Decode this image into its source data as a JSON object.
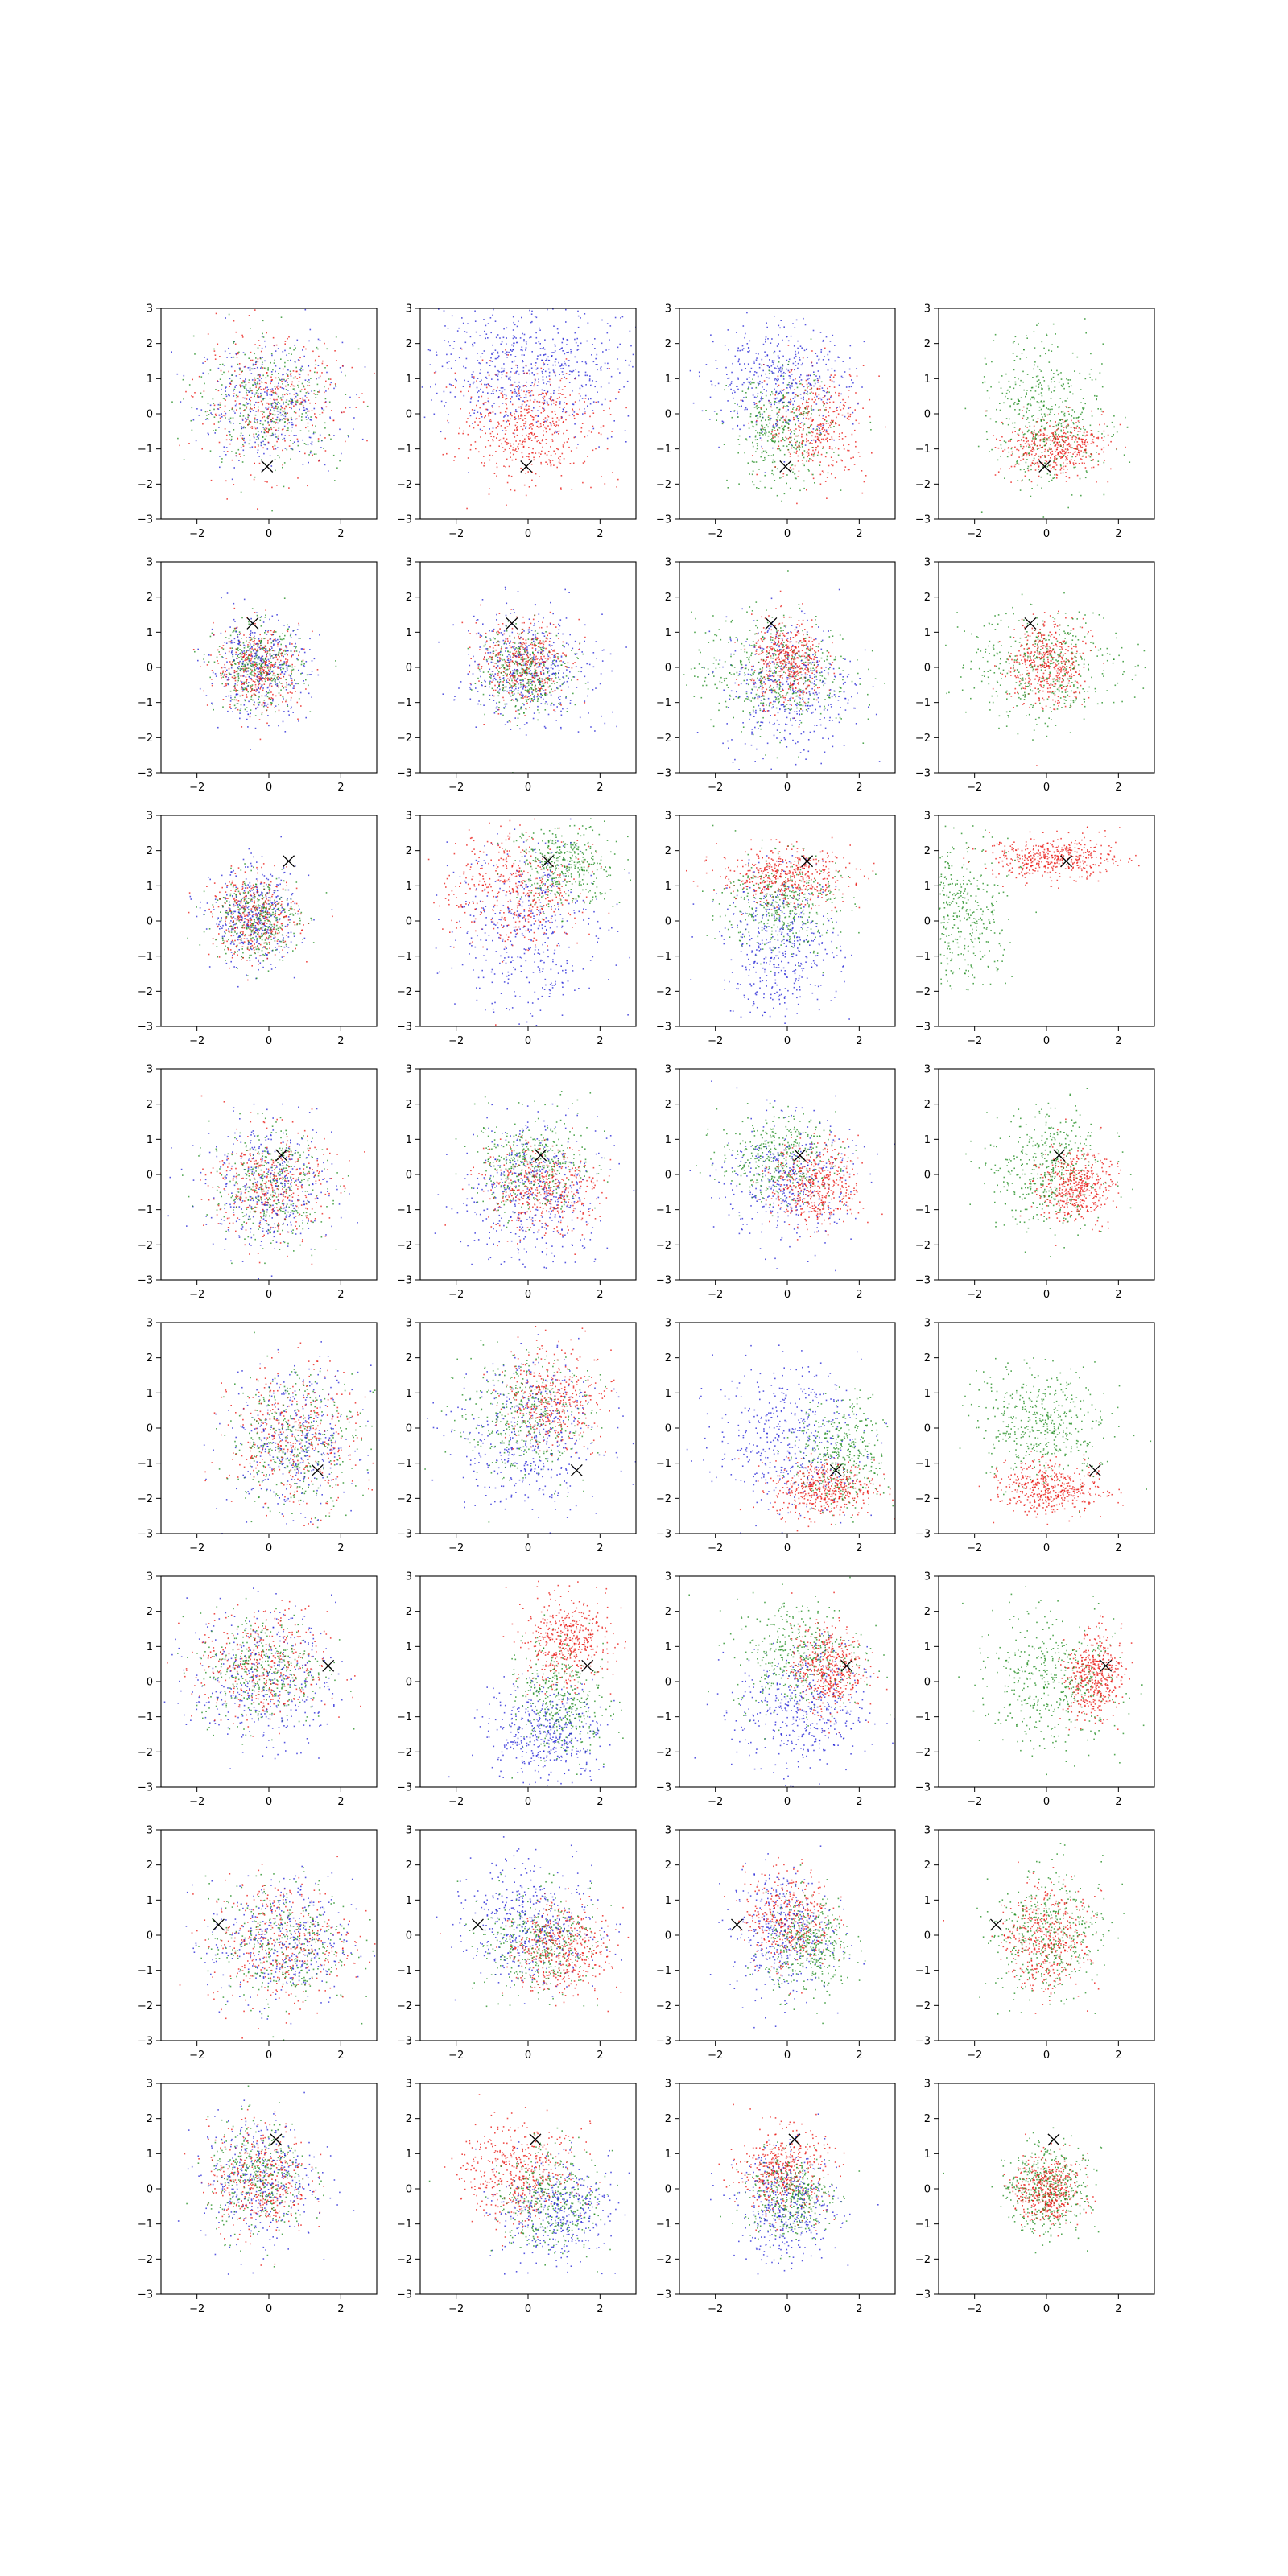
{
  "figure": {
    "rows": 8,
    "cols": 4,
    "colors": {
      "red": "#e8120c",
      "green": "#1a8a1a",
      "blue": "#1f1fd6",
      "marker": "#000000"
    }
  },
  "axes": {
    "xlim": [
      -3,
      3
    ],
    "ylim": [
      -3,
      3
    ],
    "xticks": [
      -2,
      0,
      2
    ],
    "yticks": [
      -3,
      -2,
      -1,
      0,
      1,
      2,
      3
    ],
    "xtick_labels": [
      "−2",
      "0",
      "2"
    ],
    "ytick_labels": [
      "−3",
      "−2",
      "−1",
      "0",
      "1",
      "2",
      "3"
    ]
  },
  "chart_data": {
    "type": "scatter",
    "description_of_panels": "8×4 grid of scatter panels; each row shares one × marker position; points drawn as Gaussian clouds per color",
    "markers": [
      {
        "row": 0,
        "x": -0.05,
        "y": -1.5
      },
      {
        "row": 1,
        "x": -0.45,
        "y": 1.25
      },
      {
        "row": 2,
        "x": 0.55,
        "y": 1.7
      },
      {
        "row": 3,
        "x": 0.35,
        "y": 0.55
      },
      {
        "row": 4,
        "x": 1.35,
        "y": -1.2
      },
      {
        "row": 5,
        "x": 1.65,
        "y": 0.45
      },
      {
        "row": 6,
        "x": -1.4,
        "y": 0.3
      },
      {
        "row": 7,
        "x": 0.2,
        "y": 1.4
      }
    ],
    "panels": [
      [
        {
          "clouds": [
            {
              "c": "blue",
              "mx": 0,
              "my": 0.3,
              "sx": 1.0,
              "sy": 0.9,
              "n": 380
            },
            {
              "c": "red",
              "mx": 0,
              "my": 0.3,
              "sx": 1.0,
              "sy": 0.9,
              "n": 380
            },
            {
              "c": "green",
              "mx": 0,
              "my": 0.3,
              "sx": 1.0,
              "sy": 0.9,
              "n": 380
            }
          ]
        },
        {
          "clouds": [
            {
              "c": "blue",
              "mx": 0,
              "my": 1.4,
              "sx": 1.5,
              "sy": 0.9,
              "n": 650
            },
            {
              "c": "red",
              "mx": 0,
              "my": -0.4,
              "sx": 0.9,
              "sy": 0.8,
              "n": 550
            }
          ]
        },
        {
          "clouds": [
            {
              "c": "blue",
              "mx": -0.3,
              "my": 1.0,
              "sx": 1.0,
              "sy": 0.8,
              "n": 450
            },
            {
              "c": "red",
              "mx": 0.8,
              "my": -0.3,
              "sx": 0.7,
              "sy": 0.8,
              "n": 400
            },
            {
              "c": "green",
              "mx": -0.2,
              "my": -0.5,
              "sx": 0.7,
              "sy": 0.8,
              "n": 380
            }
          ]
        },
        {
          "clouds": [
            {
              "c": "green",
              "mx": 0,
              "my": 0.0,
              "sx": 0.8,
              "sy": 1.0,
              "n": 500
            },
            {
              "c": "red",
              "mx": 0.2,
              "my": -0.9,
              "sx": 0.7,
              "sy": 0.4,
              "n": 450
            }
          ]
        }
      ],
      [
        {
          "clouds": [
            {
              "c": "blue",
              "mx": -0.3,
              "my": 0,
              "sx": 0.7,
              "sy": 0.7,
              "n": 380
            },
            {
              "c": "red",
              "mx": -0.3,
              "my": 0,
              "sx": 0.6,
              "sy": 0.6,
              "n": 380
            },
            {
              "c": "green",
              "mx": -0.3,
              "my": 0,
              "sx": 0.6,
              "sy": 0.6,
              "n": 380
            }
          ]
        },
        {
          "clouds": [
            {
              "c": "blue",
              "mx": 0,
              "my": 0,
              "sx": 0.9,
              "sy": 0.8,
              "n": 450
            },
            {
              "c": "red",
              "mx": -0.1,
              "my": 0.1,
              "sx": 0.6,
              "sy": 0.6,
              "n": 400
            },
            {
              "c": "green",
              "mx": -0.1,
              "my": -0.1,
              "sx": 0.6,
              "sy": 0.6,
              "n": 400
            }
          ]
        },
        {
          "clouds": [
            {
              "c": "blue",
              "mx": 0,
              "my": -0.5,
              "sx": 0.9,
              "sy": 1.0,
              "n": 450
            },
            {
              "c": "green",
              "mx": -0.4,
              "my": -0.1,
              "sx": 1.1,
              "sy": 0.8,
              "n": 450
            },
            {
              "c": "red",
              "mx": 0,
              "my": 0.2,
              "sx": 0.5,
              "sy": 0.6,
              "n": 450
            }
          ]
        },
        {
          "clouds": [
            {
              "c": "green",
              "mx": 0,
              "my": 0,
              "sx": 1.1,
              "sy": 0.8,
              "n": 450
            },
            {
              "c": "red",
              "mx": 0,
              "my": 0.1,
              "sx": 0.5,
              "sy": 0.6,
              "n": 450
            }
          ]
        }
      ],
      [
        {
          "clouds": [
            {
              "c": "blue",
              "mx": -0.4,
              "my": 0.1,
              "sx": 0.6,
              "sy": 0.7,
              "n": 380
            },
            {
              "c": "red",
              "mx": -0.4,
              "my": 0.1,
              "sx": 0.6,
              "sy": 0.6,
              "n": 380
            },
            {
              "c": "green",
              "mx": -0.4,
              "my": 0.1,
              "sx": 0.6,
              "sy": 0.6,
              "n": 380
            }
          ]
        },
        {
          "clouds": [
            {
              "c": "blue",
              "mx": 0,
              "my": -0.3,
              "sx": 1.0,
              "sy": 1.3,
              "n": 450
            },
            {
              "c": "red",
              "mx": -0.4,
              "my": 0.9,
              "sx": 0.9,
              "sy": 0.8,
              "n": 450
            },
            {
              "c": "green",
              "mx": 1.0,
              "my": 1.6,
              "sx": 0.7,
              "sy": 0.6,
              "n": 400
            }
          ]
        },
        {
          "clouds": [
            {
              "c": "blue",
              "mx": -0.2,
              "my": -0.7,
              "sx": 0.8,
              "sy": 1.0,
              "n": 450
            },
            {
              "c": "green",
              "mx": -0.2,
              "my": 0.5,
              "sx": 0.8,
              "sy": 0.7,
              "n": 400
            },
            {
              "c": "red",
              "mx": -0.1,
              "my": 1.3,
              "sx": 0.9,
              "sy": 0.4,
              "n": 450
            }
          ]
        },
        {
          "clouds": [
            {
              "c": "green",
              "mx": -2.5,
              "my": 0.2,
              "sx": 0.7,
              "sy": 1.0,
              "n": 450
            },
            {
              "c": "red",
              "mx": 0.2,
              "my": 1.8,
              "sx": 0.9,
              "sy": 0.3,
              "n": 450
            }
          ]
        }
      ],
      [
        {
          "clouds": [
            {
              "c": "blue",
              "mx": 0,
              "my": -0.3,
              "sx": 0.9,
              "sy": 0.9,
              "n": 380
            },
            {
              "c": "red",
              "mx": 0,
              "my": -0.3,
              "sx": 0.8,
              "sy": 0.8,
              "n": 380
            },
            {
              "c": "green",
              "mx": 0,
              "my": -0.3,
              "sx": 0.8,
              "sy": 0.8,
              "n": 380
            }
          ]
        },
        {
          "clouds": [
            {
              "c": "blue",
              "mx": 0.1,
              "my": -0.5,
              "sx": 0.9,
              "sy": 1.0,
              "n": 450
            },
            {
              "c": "green",
              "mx": 0.1,
              "my": 0.3,
              "sx": 0.8,
              "sy": 0.7,
              "n": 400
            },
            {
              "c": "red",
              "mx": 0.4,
              "my": -0.4,
              "sx": 0.8,
              "sy": 0.6,
              "n": 450
            }
          ]
        },
        {
          "clouds": [
            {
              "c": "blue",
              "mx": 0,
              "my": -0.2,
              "sx": 0.9,
              "sy": 0.9,
              "n": 400
            },
            {
              "c": "green",
              "mx": -0.3,
              "my": 0.5,
              "sx": 0.8,
              "sy": 0.6,
              "n": 400
            },
            {
              "c": "red",
              "mx": 0.8,
              "my": -0.3,
              "sx": 0.6,
              "sy": 0.6,
              "n": 450
            }
          ]
        },
        {
          "clouds": [
            {
              "c": "green",
              "mx": 0,
              "my": 0.2,
              "sx": 0.8,
              "sy": 0.9,
              "n": 450
            },
            {
              "c": "red",
              "mx": 0.8,
              "my": -0.3,
              "sx": 0.5,
              "sy": 0.5,
              "n": 450
            }
          ]
        }
      ],
      [
        {
          "clouds": [
            {
              "c": "blue",
              "mx": 0.7,
              "my": -0.3,
              "sx": 0.9,
              "sy": 1.0,
              "n": 380
            },
            {
              "c": "red",
              "mx": 0.7,
              "my": -0.3,
              "sx": 0.9,
              "sy": 1.0,
              "n": 380
            },
            {
              "c": "green",
              "mx": 0.7,
              "my": -0.3,
              "sx": 0.9,
              "sy": 1.0,
              "n": 380
            }
          ]
        },
        {
          "clouds": [
            {
              "c": "blue",
              "mx": 0,
              "my": -0.2,
              "sx": 1.0,
              "sy": 1.1,
              "n": 450
            },
            {
              "c": "green",
              "mx": -0.1,
              "my": 0.4,
              "sx": 0.9,
              "sy": 0.9,
              "n": 400
            },
            {
              "c": "red",
              "mx": 0.7,
              "my": 0.9,
              "sx": 0.7,
              "sy": 0.7,
              "n": 400
            }
          ]
        },
        {
          "clouds": [
            {
              "c": "blue",
              "mx": 0,
              "my": -0.2,
              "sx": 1.0,
              "sy": 1.0,
              "n": 450
            },
            {
              "c": "green",
              "mx": 1.5,
              "my": -0.8,
              "sx": 0.6,
              "sy": 0.8,
              "n": 400
            },
            {
              "c": "red",
              "mx": 1.0,
              "my": -1.7,
              "sx": 0.7,
              "sy": 0.4,
              "n": 450
            }
          ]
        },
        {
          "clouds": [
            {
              "c": "green",
              "mx": -0.1,
              "my": 0.1,
              "sx": 0.9,
              "sy": 0.8,
              "n": 450
            },
            {
              "c": "red",
              "mx": 0.1,
              "my": -1.7,
              "sx": 0.7,
              "sy": 0.35,
              "n": 450
            }
          ]
        }
      ],
      [
        {
          "clouds": [
            {
              "c": "blue",
              "mx": -0.2,
              "my": 0.1,
              "sx": 1.0,
              "sy": 1.0,
              "n": 380
            },
            {
              "c": "red",
              "mx": -0.2,
              "my": 0.4,
              "sx": 0.9,
              "sy": 0.8,
              "n": 380
            },
            {
              "c": "green",
              "mx": -0.2,
              "my": 0.4,
              "sx": 0.9,
              "sy": 0.8,
              "n": 380
            }
          ]
        },
        {
          "clouds": [
            {
              "c": "blue",
              "mx": 0.5,
              "my": -1.5,
              "sx": 0.8,
              "sy": 0.7,
              "n": 450
            },
            {
              "c": "green",
              "mx": 0.9,
              "my": -0.5,
              "sx": 0.6,
              "sy": 0.8,
              "n": 400
            },
            {
              "c": "red",
              "mx": 1.0,
              "my": 1.2,
              "sx": 0.6,
              "sy": 0.6,
              "n": 450
            }
          ]
        },
        {
          "clouds": [
            {
              "c": "blue",
              "mx": 0.4,
              "my": -0.8,
              "sx": 0.9,
              "sy": 0.9,
              "n": 450
            },
            {
              "c": "green",
              "mx": 0.3,
              "my": 0.8,
              "sx": 0.9,
              "sy": 0.8,
              "n": 400
            },
            {
              "c": "red",
              "mx": 1.1,
              "my": 0.4,
              "sx": 0.5,
              "sy": 0.6,
              "n": 450
            }
          ]
        },
        {
          "clouds": [
            {
              "c": "green",
              "mx": 0.1,
              "my": 0,
              "sx": 0.9,
              "sy": 0.9,
              "n": 450
            },
            {
              "c": "red",
              "mx": 1.3,
              "my": 0.2,
              "sx": 0.4,
              "sy": 0.6,
              "n": 450
            }
          ]
        }
      ],
      [
        {
          "clouds": [
            {
              "c": "blue",
              "mx": 0.3,
              "my": -0.2,
              "sx": 1.0,
              "sy": 0.9,
              "n": 380
            },
            {
              "c": "red",
              "mx": 0.3,
              "my": -0.2,
              "sx": 1.0,
              "sy": 0.9,
              "n": 380
            },
            {
              "c": "green",
              "mx": 0.3,
              "my": -0.2,
              "sx": 1.0,
              "sy": 0.9,
              "n": 380
            }
          ]
        },
        {
          "clouds": [
            {
              "c": "blue",
              "mx": 0,
              "my": 0.4,
              "sx": 0.9,
              "sy": 0.8,
              "n": 450
            },
            {
              "c": "green",
              "mx": 0.2,
              "my": -0.2,
              "sx": 0.8,
              "sy": 0.7,
              "n": 400
            },
            {
              "c": "red",
              "mx": 0.9,
              "my": -0.4,
              "sx": 0.7,
              "sy": 0.6,
              "n": 450
            }
          ]
        },
        {
          "clouds": [
            {
              "c": "blue",
              "mx": -0.2,
              "my": 0.1,
              "sx": 0.7,
              "sy": 0.9,
              "n": 400
            },
            {
              "c": "red",
              "mx": 0,
              "my": 0.5,
              "sx": 0.6,
              "sy": 0.7,
              "n": 400
            },
            {
              "c": "green",
              "mx": 0.6,
              "my": -0.3,
              "sx": 0.6,
              "sy": 0.7,
              "n": 400
            }
          ]
        },
        {
          "clouds": [
            {
              "c": "green",
              "mx": 0,
              "my": 0.1,
              "sx": 0.8,
              "sy": 0.9,
              "n": 450
            },
            {
              "c": "red",
              "mx": 0,
              "my": -0.1,
              "sx": 0.6,
              "sy": 0.7,
              "n": 450
            }
          ]
        }
      ],
      [
        {
          "clouds": [
            {
              "c": "blue",
              "mx": -0.3,
              "my": 0.3,
              "sx": 0.8,
              "sy": 0.9,
              "n": 380
            },
            {
              "c": "red",
              "mx": -0.3,
              "my": 0.3,
              "sx": 0.7,
              "sy": 0.8,
              "n": 380
            },
            {
              "c": "green",
              "mx": -0.3,
              "my": 0.3,
              "sx": 0.7,
              "sy": 0.8,
              "n": 380
            }
          ]
        },
        {
          "clouds": [
            {
              "c": "blue",
              "mx": 0.7,
              "my": -0.6,
              "sx": 0.8,
              "sy": 0.7,
              "n": 400
            },
            {
              "c": "green",
              "mx": 0.6,
              "my": -0.3,
              "sx": 0.7,
              "sy": 0.7,
              "n": 380
            },
            {
              "c": "red",
              "mx": -0.3,
              "my": 0.5,
              "sx": 0.8,
              "sy": 0.7,
              "n": 450
            }
          ]
        },
        {
          "clouds": [
            {
              "c": "blue",
              "mx": 0,
              "my": -0.5,
              "sx": 0.7,
              "sy": 0.8,
              "n": 400
            },
            {
              "c": "green",
              "mx": 0,
              "my": -0.2,
              "sx": 0.6,
              "sy": 0.6,
              "n": 400
            },
            {
              "c": "red",
              "mx": -0.1,
              "my": 0.5,
              "sx": 0.6,
              "sy": 0.6,
              "n": 450
            }
          ]
        },
        {
          "clouds": [
            {
              "c": "green",
              "mx": 0,
              "my": 0,
              "sx": 0.6,
              "sy": 0.6,
              "n": 450
            },
            {
              "c": "red",
              "mx": 0,
              "my": 0,
              "sx": 0.45,
              "sy": 0.5,
              "n": 450
            }
          ]
        }
      ]
    ]
  }
}
